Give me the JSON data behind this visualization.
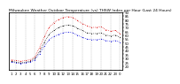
{
  "title": "Milwaukee Weather Outdoor Temperature (vs) THSW Index per Hour (Last 24 Hours)",
  "title_fontsize": 3.2,
  "title_color": "#000000",
  "background_color": "#ffffff",
  "plot_bg_color": "#ffffff",
  "grid_color": "#888888",
  "x_values": [
    0,
    1,
    2,
    3,
    4,
    5,
    6,
    7,
    8,
    9,
    10,
    11,
    12,
    13,
    14,
    15,
    16,
    17,
    18,
    19,
    20,
    21,
    22,
    23
  ],
  "temp_values": [
    25,
    24,
    23,
    24,
    25,
    28,
    36,
    46,
    54,
    58,
    61,
    63,
    64,
    63,
    60,
    57,
    55,
    54,
    54,
    55,
    53,
    52,
    53,
    51
  ],
  "thsw_values": [
    28,
    27,
    26,
    27,
    28,
    32,
    44,
    58,
    70,
    76,
    80,
    83,
    84,
    83,
    79,
    75,
    72,
    70,
    70,
    71,
    67,
    65,
    66,
    62
  ],
  "black_values": [
    26,
    25,
    24,
    25,
    26,
    30,
    39,
    51,
    61,
    66,
    70,
    72,
    73,
    72,
    69,
    66,
    63,
    62,
    62,
    63,
    60,
    59,
    60,
    57
  ],
  "temp_color": "#0000dd",
  "thsw_color": "#dd0000",
  "black_color": "#000000",
  "ylim": [
    15,
    90
  ],
  "xlim": [
    -0.5,
    23.5
  ],
  "tick_labels": [
    "1",
    "2",
    "3",
    "4",
    "5",
    "6",
    "7",
    "8",
    "9",
    "10",
    "11",
    "12",
    "13",
    "14",
    "15",
    "16",
    "17",
    "18",
    "19",
    "20",
    "21",
    "22",
    "23",
    "0"
  ],
  "tick_fontsize": 2.8,
  "vgrid_positions": [
    1,
    3,
    5,
    7,
    9,
    11,
    13,
    15,
    17,
    19,
    21,
    23
  ],
  "right_yticks": [
    20,
    25,
    30,
    35,
    40,
    45,
    50,
    55,
    60,
    65,
    70,
    75,
    80,
    85,
    90
  ]
}
